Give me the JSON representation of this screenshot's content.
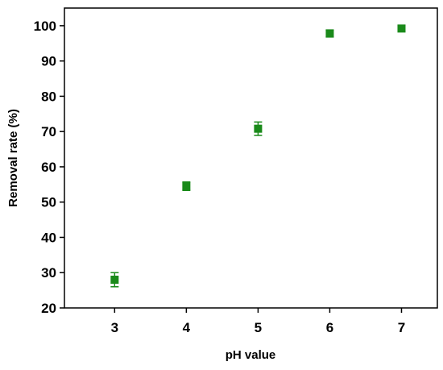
{
  "chart_data": {
    "type": "scatter",
    "title": "",
    "xlabel": "pH value",
    "ylabel": "Removal rate (%)",
    "xlim": [
      2.3,
      7.5
    ],
    "ylim": [
      20,
      105
    ],
    "x_ticks": [
      3,
      4,
      5,
      6,
      7
    ],
    "y_ticks": [
      20,
      30,
      40,
      50,
      60,
      70,
      80,
      90,
      100
    ],
    "grid": false,
    "legend": "none",
    "marker": "square",
    "color": "#1a8a1a",
    "series": [
      {
        "x": [
          3,
          4,
          5,
          6,
          7
        ],
        "y": [
          28.0,
          54.5,
          70.8,
          97.8,
          99.2
        ],
        "error": [
          2.0,
          1.2,
          1.9,
          1.0,
          0.8
        ]
      }
    ]
  }
}
